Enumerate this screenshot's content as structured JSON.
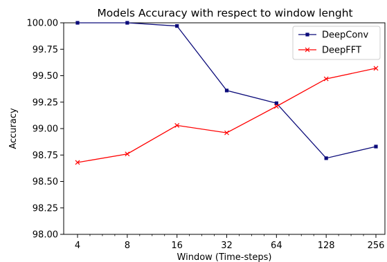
{
  "chart_data": {
    "type": "line",
    "title": "Models Accuracy with respect to window lenght",
    "xlabel": "Window (Time-steps)",
    "ylabel": "Accuracy",
    "x_scale": "log2",
    "categories": [
      "4",
      "8",
      "16",
      "32",
      "64",
      "128",
      "256"
    ],
    "x": [
      4,
      8,
      16,
      32,
      64,
      128,
      256
    ],
    "ylim": [
      98.0,
      100.0
    ],
    "yticks": [
      "98.00",
      "98.25",
      "98.50",
      "98.75",
      "99.00",
      "99.25",
      "99.50",
      "99.75",
      "100.00"
    ],
    "grid": false,
    "legend_position": "top-right",
    "series": [
      {
        "name": "DeepConv",
        "color": "#0b0b7a",
        "marker": "square",
        "values": [
          100.0,
          100.0,
          99.97,
          99.36,
          99.24,
          98.72,
          98.83
        ]
      },
      {
        "name": "DeepFFT",
        "color": "#ff0000",
        "marker": "x",
        "values": [
          98.68,
          98.76,
          99.03,
          98.96,
          99.21,
          99.47,
          99.57
        ]
      }
    ]
  }
}
